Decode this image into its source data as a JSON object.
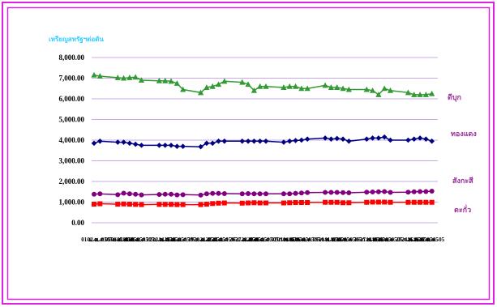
{
  "chart_data": {
    "type": "line",
    "ylabel": "เหรียญสหรัฐฯต่อตัน",
    "ylim": [
      0,
      8000
    ],
    "y_tick_labels": [
      "0.00",
      "1,000.00",
      "2,000.00",
      "3,000.00",
      "4,000.00",
      "5,000.00",
      "6,000.00",
      "7,000.00",
      "8,000.00"
    ],
    "grid": true,
    "legend": "right",
    "x": [
      "01-ม.ค.-05",
      "02-ม.ค.-05",
      "05-ม.ค.-05",
      "06-ม.ค.-05",
      "07-ม.ค.-05",
      "08-ม.ค.-05",
      "09-ม.ค.-05",
      "12-ม.ค.-05",
      "13-ม.ค.-05",
      "14-ม.ค.-05",
      "15-ม.ค.-05",
      "16-ม.ค.-05",
      "19-ม.ค.-05",
      "20-ม.ค.-05",
      "21-ม.ค.-05",
      "22-ม.ค.-05",
      "23-ม.ค.-05",
      "26-ม.ค.-05",
      "27-ม.ค.-05",
      "28-ม.ค.-05",
      "29-ม.ค.-05",
      "30-ม.ค.-05",
      "02-ก.พ.-05",
      "03-ก.พ.-05",
      "04-ก.พ.-05",
      "05-ก.พ.-05",
      "06-ก.พ.-05",
      "09-ก.พ.-05",
      "10-ก.พ.-05",
      "11-ก.พ.-05",
      "12-ก.พ.-05",
      "13-ก.พ.-05",
      "16-ก.พ.-05",
      "17-ก.พ.-05",
      "18-ก.พ.-05",
      "19-ก.พ.-05",
      "20-ก.พ.-05",
      "23-ก.พ.-05",
      "24-ก.พ.-05",
      "25-ก.พ.-05",
      "26-ก.พ.-05",
      "27-ก.พ.-05"
    ],
    "series": [
      {
        "name": "ดีบุก",
        "color": "#339933",
        "marker": "triangle",
        "values": [
          7150,
          7100,
          7025,
          7000,
          7025,
          7050,
          6900,
          6875,
          6875,
          6850,
          6750,
          6450,
          6300,
          6550,
          6600,
          6700,
          6850,
          6800,
          6700,
          6400,
          6600,
          6600,
          6550,
          6600,
          6600,
          6500,
          6500,
          6650,
          6550,
          6550,
          6500,
          6450,
          6450,
          6400,
          6200,
          6500,
          6400,
          6300,
          6200,
          6200,
          6200,
          6250
        ]
      },
      {
        "name": "ทองแดง",
        "color": "#000080",
        "marker": "diamond",
        "values": [
          3850,
          3950,
          3900,
          3900,
          3850,
          3800,
          3750,
          3750,
          3750,
          3750,
          3700,
          3700,
          3680,
          3850,
          3850,
          3950,
          3950,
          3950,
          3950,
          3950,
          3950,
          3950,
          3900,
          3950,
          3980,
          4000,
          4050,
          4100,
          4050,
          4080,
          4050,
          3950,
          4050,
          4100,
          4100,
          4150,
          4000,
          4000,
          4050,
          4100,
          4050,
          3950
        ]
      },
      {
        "name": "สังกะสี",
        "color": "#800080",
        "marker": "circle",
        "values": [
          1380,
          1400,
          1360,
          1430,
          1400,
          1380,
          1350,
          1370,
          1380,
          1380,
          1350,
          1360,
          1340,
          1400,
          1420,
          1420,
          1410,
          1400,
          1410,
          1400,
          1400,
          1400,
          1400,
          1400,
          1420,
          1440,
          1460,
          1470,
          1470,
          1470,
          1460,
          1450,
          1480,
          1490,
          1500,
          1510,
          1470,
          1480,
          1500,
          1510,
          1510,
          1530
        ]
      },
      {
        "name": "ตะกั่ว",
        "color": "#ff0000",
        "marker": "square",
        "values": [
          900,
          920,
          900,
          910,
          900,
          890,
          880,
          890,
          890,
          890,
          880,
          880,
          880,
          900,
          930,
          950,
          960,
          950,
          960,
          970,
          960,
          960,
          960,
          970,
          980,
          980,
          980,
          990,
          990,
          990,
          970,
          970,
          990,
          1000,
          1000,
          1000,
          990,
          990,
          990,
          990,
          990,
          990
        ]
      }
    ]
  },
  "colors": {
    "frame": "#e020e0",
    "ylabel": "#33ccff",
    "series_label": "#993399",
    "grid": "#c9a8ee"
  }
}
